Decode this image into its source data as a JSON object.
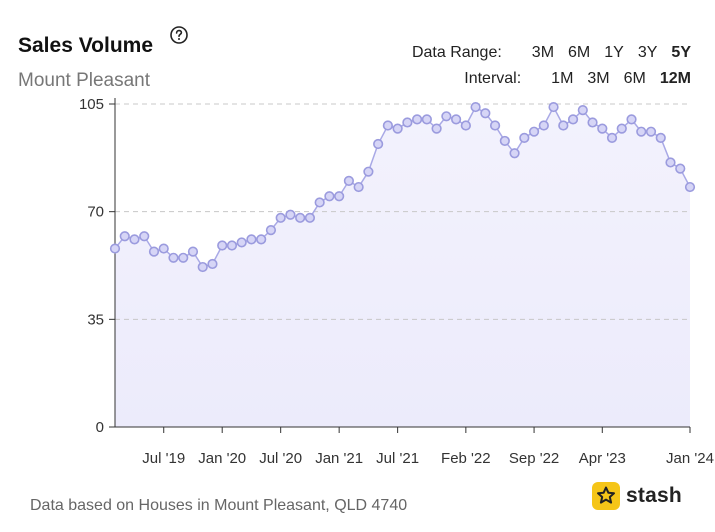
{
  "header": {
    "title": "Sales Volume",
    "subtitle": "Mount Pleasant",
    "help_icon": "question-circle-icon"
  },
  "controls": {
    "data_range_label": "Data Range:",
    "data_range_options": [
      "3M",
      "6M",
      "1Y",
      "3Y",
      "5Y"
    ],
    "data_range_selected": "5Y",
    "interval_label": "Interval:",
    "interval_options": [
      "1M",
      "3M",
      "6M",
      "12M"
    ],
    "interval_selected": "12M"
  },
  "footer": {
    "note": "Data based on Houses in Mount Pleasant, QLD 4740",
    "brand": "stash",
    "brand_icon": "star-icon",
    "brand_color": "#f5c518"
  },
  "chart_data": {
    "type": "area",
    "title": "Sales Volume",
    "xlabel": "",
    "ylabel": "",
    "ylim": [
      0,
      105
    ],
    "yticks": [
      0,
      35,
      70,
      105
    ],
    "xticks": [
      "Jul '19",
      "Jan '20",
      "Jul '20",
      "Jan '21",
      "Jul '21",
      "Feb '22",
      "Sep '22",
      "Apr '23",
      "Jan '24"
    ],
    "grid": true,
    "colors": {
      "line": "#a9a9e6",
      "fill": "#ecebfb",
      "marker_fill": "#d6d5f6",
      "marker_stroke": "#9b9bde",
      "grid": "#c8c8c8"
    },
    "series": [
      {
        "values": [
          58,
          62,
          61,
          62,
          57,
          58,
          55,
          55,
          57,
          52,
          53,
          59,
          59,
          60,
          61,
          61,
          64,
          68,
          69,
          68,
          68,
          73,
          75,
          75,
          80,
          78,
          83,
          92,
          98,
          97,
          99,
          100,
          100,
          97,
          101,
          100,
          98,
          104,
          102,
          98,
          93,
          89,
          94,
          96,
          98,
          104,
          98,
          100,
          103,
          99,
          97,
          94,
          97,
          100,
          96,
          96,
          94,
          86,
          84,
          78
        ]
      }
    ]
  }
}
